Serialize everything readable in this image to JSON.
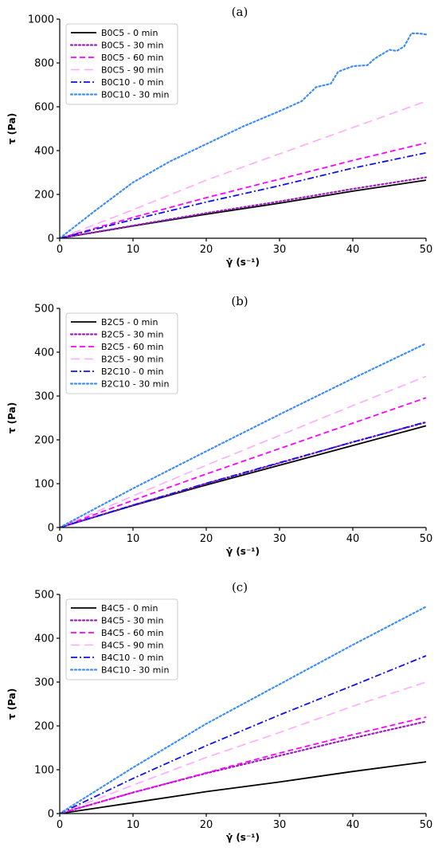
{
  "chart_data": [
    {
      "type": "line",
      "panel_label": "(a)",
      "title": "",
      "xlabel": "γ̇ (s⁻¹)",
      "ylabel": "τ (Pa)",
      "xlim": [
        0,
        50
      ],
      "ylim": [
        0,
        1000
      ],
      "xticks": [
        0,
        10,
        20,
        30,
        40,
        50
      ],
      "yticks": [
        0,
        200,
        400,
        600,
        800,
        1000
      ],
      "grid": false,
      "legend_position": "top-left",
      "series": [
        {
          "name": "B0C5 - 0 min",
          "color": "#000000",
          "dash": "solid",
          "x": [
            0,
            10,
            20,
            30,
            40,
            50
          ],
          "y": [
            0,
            56,
            110,
            160,
            215,
            265
          ]
        },
        {
          "name": "B0C5 - 30 min",
          "color": "#9b1fbf",
          "dash": "dot",
          "x": [
            0,
            10,
            20,
            30,
            40,
            50
          ],
          "y": [
            0,
            58,
            115,
            168,
            225,
            278
          ]
        },
        {
          "name": "B0C5 - 60 min",
          "color": "#ff00ff",
          "dash": "dash",
          "x": [
            0,
            10,
            20,
            30,
            40,
            50
          ],
          "y": [
            0,
            95,
            185,
            270,
            355,
            435
          ]
        },
        {
          "name": "B0C5 - 90 min",
          "color": "#ffa6ff",
          "dash": "longdash",
          "x": [
            0,
            10,
            20,
            30,
            40,
            50
          ],
          "y": [
            0,
            130,
            265,
            385,
            505,
            625
          ]
        },
        {
          "name": "B0C10 - 0 min",
          "color": "#1010ee",
          "dash": "dashdot",
          "x": [
            0,
            10,
            20,
            30,
            40,
            50
          ],
          "y": [
            0,
            85,
            165,
            240,
            320,
            390
          ]
        },
        {
          "name": "B0C10 - 30 min",
          "color": "#3d8ef7",
          "dash": "dot",
          "x": [
            0,
            5,
            10,
            15,
            20,
            25,
            30,
            33,
            35,
            37,
            38,
            40,
            42,
            43,
            45,
            46,
            47,
            48,
            49,
            50
          ],
          "y": [
            0,
            130,
            255,
            350,
            430,
            510,
            580,
            625,
            690,
            705,
            760,
            785,
            790,
            820,
            860,
            855,
            875,
            935,
            935,
            930
          ]
        }
      ]
    },
    {
      "type": "line",
      "panel_label": "(b)",
      "title": "",
      "xlabel": "γ̇ (s⁻¹)",
      "ylabel": "τ (Pa)",
      "xlim": [
        0,
        50
      ],
      "ylim": [
        0,
        500
      ],
      "xticks": [
        0,
        10,
        20,
        30,
        40,
        50
      ],
      "yticks": [
        0,
        100,
        200,
        300,
        400,
        500
      ],
      "grid": false,
      "legend_position": "top-left",
      "series": [
        {
          "name": "B2C5 - 0 min",
          "color": "#000000",
          "dash": "solid",
          "x": [
            0,
            10,
            20,
            30,
            40,
            50
          ],
          "y": [
            0,
            50,
            97,
            142,
            187,
            232
          ]
        },
        {
          "name": "B2C5 - 30 min",
          "color": "#9b1fbf",
          "dash": "dot",
          "x": [
            0,
            10,
            20,
            30,
            40,
            50
          ],
          "y": [
            0,
            51,
            100,
            147,
            195,
            240
          ]
        },
        {
          "name": "B2C5 - 60 min",
          "color": "#ff00ff",
          "dash": "dash",
          "x": [
            0,
            10,
            20,
            30,
            40,
            50
          ],
          "y": [
            0,
            62,
            122,
            180,
            238,
            296
          ]
        },
        {
          "name": "B2C5 - 90 min",
          "color": "#ffa6ff",
          "dash": "longdash",
          "x": [
            0,
            10,
            20,
            30,
            40,
            50
          ],
          "y": [
            0,
            72,
            142,
            210,
            278,
            345
          ]
        },
        {
          "name": "B2C10 - 0 min",
          "color": "#1010ee",
          "dash": "dashdot",
          "x": [
            0,
            10,
            20,
            30,
            40,
            50
          ],
          "y": [
            0,
            51,
            101,
            148,
            195,
            241
          ]
        },
        {
          "name": "B2C10 - 30 min",
          "color": "#3d8ef7",
          "dash": "dot",
          "x": [
            0,
            10,
            20,
            30,
            40,
            50
          ],
          "y": [
            0,
            89,
            174,
            258,
            340,
            420
          ]
        }
      ]
    },
    {
      "type": "line",
      "panel_label": "(c)",
      "title": "",
      "xlabel": "γ̇ (s⁻¹)",
      "ylabel": "τ (Pa)",
      "xlim": [
        0,
        50
      ],
      "ylim": [
        0,
        500
      ],
      "xticks": [
        0,
        10,
        20,
        30,
        40,
        50
      ],
      "yticks": [
        0,
        100,
        200,
        300,
        400,
        500
      ],
      "grid": false,
      "legend_position": "top-left",
      "series": [
        {
          "name": "B4C5 - 0 min",
          "color": "#000000",
          "dash": "solid",
          "x": [
            0,
            10,
            20,
            30,
            40,
            50
          ],
          "y": [
            0,
            25,
            50,
            72,
            96,
            118
          ]
        },
        {
          "name": "B4C5 - 30 min",
          "color": "#9b1fbf",
          "dash": "dot",
          "x": [
            0,
            10,
            20,
            30,
            40,
            50
          ],
          "y": [
            0,
            48,
            92,
            132,
            172,
            210
          ]
        },
        {
          "name": "B4C5 - 60 min",
          "color": "#ff00ff",
          "dash": "dash",
          "x": [
            0,
            10,
            20,
            30,
            40,
            50
          ],
          "y": [
            0,
            48,
            93,
            138,
            180,
            220
          ]
        },
        {
          "name": "B4C5 - 90 min",
          "color": "#ffa6ff",
          "dash": "longdash",
          "x": [
            0,
            10,
            20,
            30,
            40,
            50
          ],
          "y": [
            0,
            65,
            128,
            185,
            245,
            300
          ]
        },
        {
          "name": "B4C10 - 0 min",
          "color": "#1010ee",
          "dash": "dashdot",
          "x": [
            0,
            10,
            20,
            30,
            40,
            50
          ],
          "y": [
            0,
            80,
            155,
            225,
            292,
            360
          ]
        },
        {
          "name": "B4C10 - 30 min",
          "color": "#3d8ef7",
          "dash": "dot",
          "x": [
            0,
            10,
            20,
            30,
            40,
            50
          ],
          "y": [
            0,
            105,
            205,
            295,
            385,
            472
          ]
        }
      ]
    }
  ]
}
